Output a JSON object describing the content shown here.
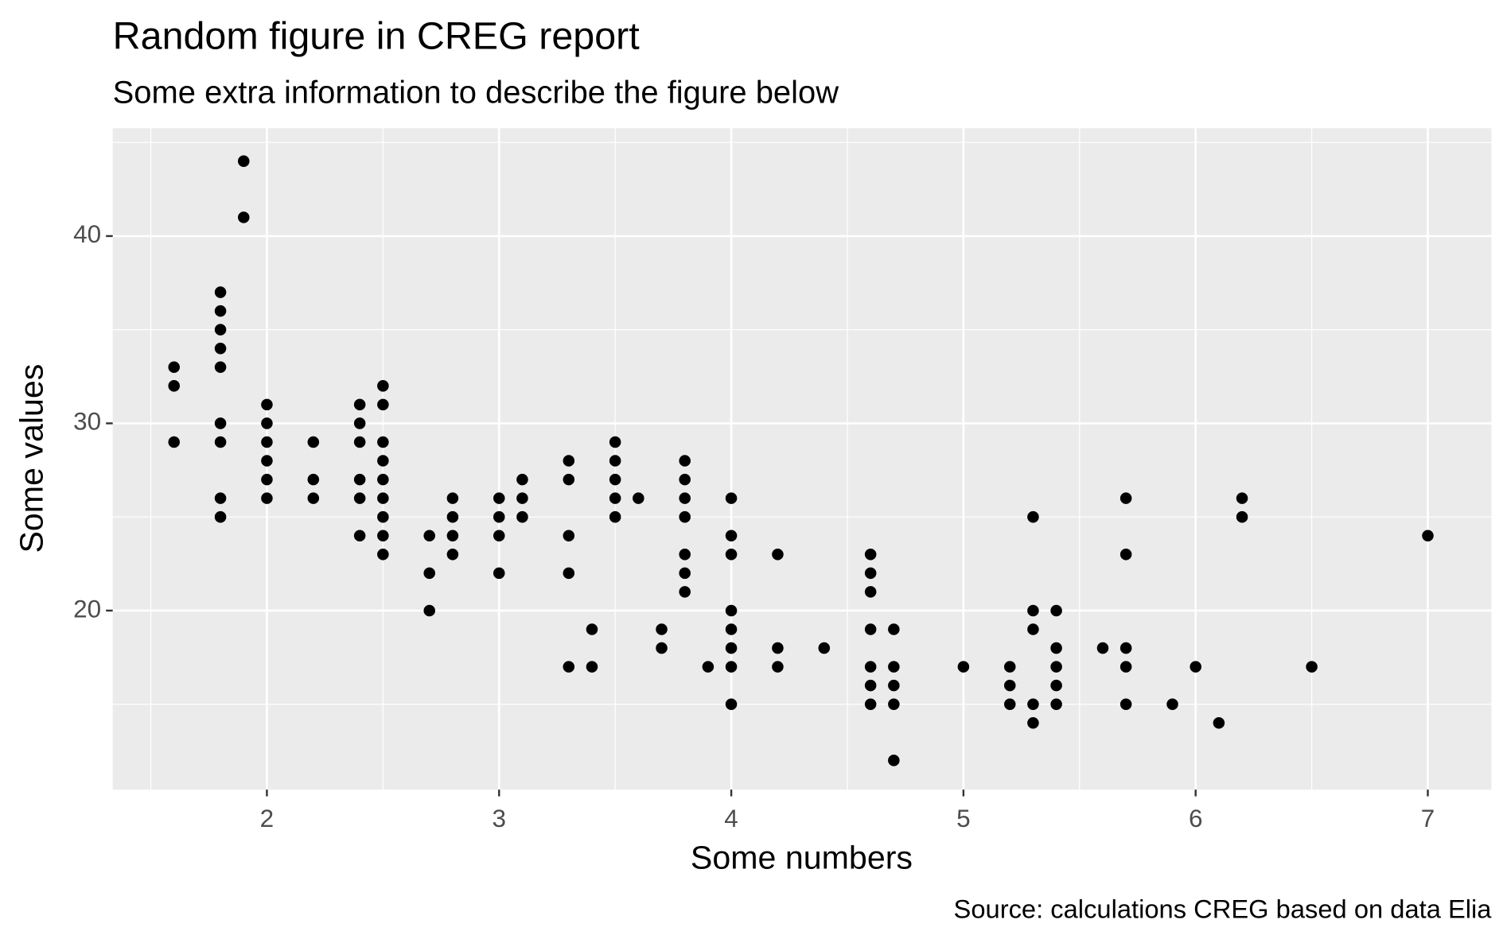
{
  "chart_data": {
    "type": "scatter",
    "title": "Random figure in CREG report",
    "subtitle": "Some extra information to describe the figure below",
    "x_label": "Some numbers",
    "y_label": "Some values",
    "caption": "Source: calculations CREG based on data Elia",
    "color": "#000000",
    "grid": true,
    "xlim": [
      1.336,
      7.274
    ],
    "ylim": [
      10.44,
      45.76
    ],
    "xticks": [
      2,
      3,
      4,
      5,
      6,
      7
    ],
    "yticks": [
      20,
      30,
      40
    ],
    "x": [
      1.6,
      1.6,
      1.6,
      1.8,
      1.8,
      1.8,
      1.8,
      1.8,
      1.8,
      1.8,
      1.8,
      1.8,
      1.9,
      1.9,
      2.0,
      2.0,
      2.0,
      2.0,
      2.0,
      2.0,
      2.2,
      2.2,
      2.2,
      2.4,
      2.4,
      2.4,
      2.4,
      2.4,
      2.4,
      2.5,
      2.5,
      2.5,
      2.5,
      2.5,
      2.5,
      2.5,
      2.5,
      2.5,
      2.7,
      2.7,
      2.7,
      2.8,
      2.8,
      2.8,
      2.8,
      3.0,
      3.0,
      3.0,
      3.0,
      3.1,
      3.1,
      3.1,
      3.3,
      3.3,
      3.3,
      3.3,
      3.3,
      3.4,
      3.4,
      3.5,
      3.5,
      3.5,
      3.5,
      3.5,
      3.6,
      3.7,
      3.7,
      3.8,
      3.8,
      3.8,
      3.8,
      3.8,
      3.8,
      3.8,
      3.9,
      4.0,
      4.0,
      4.0,
      4.0,
      4.0,
      4.0,
      4.0,
      4.0,
      4.2,
      4.2,
      4.2,
      4.4,
      4.6,
      4.6,
      4.6,
      4.6,
      4.6,
      4.6,
      4.6,
      4.7,
      4.7,
      4.7,
      4.7,
      4.7,
      5.0,
      5.2,
      5.2,
      5.2,
      5.3,
      5.3,
      5.3,
      5.3,
      5.3,
      5.4,
      5.4,
      5.4,
      5.4,
      5.4,
      5.6,
      5.7,
      5.7,
      5.7,
      5.7,
      5.7,
      5.9,
      6.0,
      6.1,
      6.2,
      6.2,
      6.5,
      7.0
    ],
    "y": [
      33,
      32,
      29,
      37,
      36,
      35,
      34,
      33,
      30,
      29,
      26,
      25,
      44,
      41,
      31,
      30,
      29,
      28,
      27,
      26,
      29,
      27,
      26,
      31,
      30,
      29,
      27,
      26,
      24,
      32,
      31,
      29,
      28,
      27,
      26,
      25,
      24,
      23,
      24,
      22,
      20,
      26,
      25,
      24,
      23,
      26,
      25,
      24,
      22,
      27,
      26,
      25,
      28,
      27,
      24,
      22,
      17,
      19,
      17,
      29,
      28,
      27,
      26,
      25,
      26,
      19,
      18,
      28,
      27,
      26,
      25,
      23,
      22,
      21,
      17,
      26,
      24,
      23,
      20,
      19,
      18,
      17,
      15,
      23,
      18,
      17,
      18,
      23,
      22,
      21,
      19,
      17,
      16,
      15,
      19,
      17,
      16,
      15,
      12,
      17,
      17,
      16,
      15,
      25,
      20,
      19,
      15,
      14,
      20,
      18,
      17,
      16,
      15,
      18,
      26,
      23,
      18,
      17,
      15,
      15,
      17,
      14,
      26,
      25,
      17,
      24
    ]
  }
}
